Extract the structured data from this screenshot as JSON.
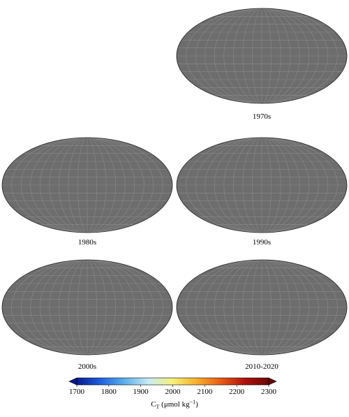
{
  "panels": [
    {
      "label": "1970s"
    },
    {
      "label": "1980s"
    },
    {
      "label": "1990s"
    },
    {
      "label": "2000s"
    },
    {
      "label": "2010-2020"
    }
  ],
  "colorbar": {
    "lim": [
      1700,
      2300
    ],
    "ticks": [
      1700,
      1800,
      1900,
      2000,
      2100,
      2200,
      2300
    ],
    "colors": [
      "#0a1a8c",
      "#1f5fe0",
      "#5fb0ec",
      "#c8ecf4",
      "#f5f07a",
      "#f5b02a",
      "#ea5a14",
      "#b0120c",
      "#6a0606"
    ],
    "label": {
      "main": "C",
      "sub": "T",
      "unit": " (μmol kg",
      "sup": "−1",
      "end": ")"
    }
  }
}
